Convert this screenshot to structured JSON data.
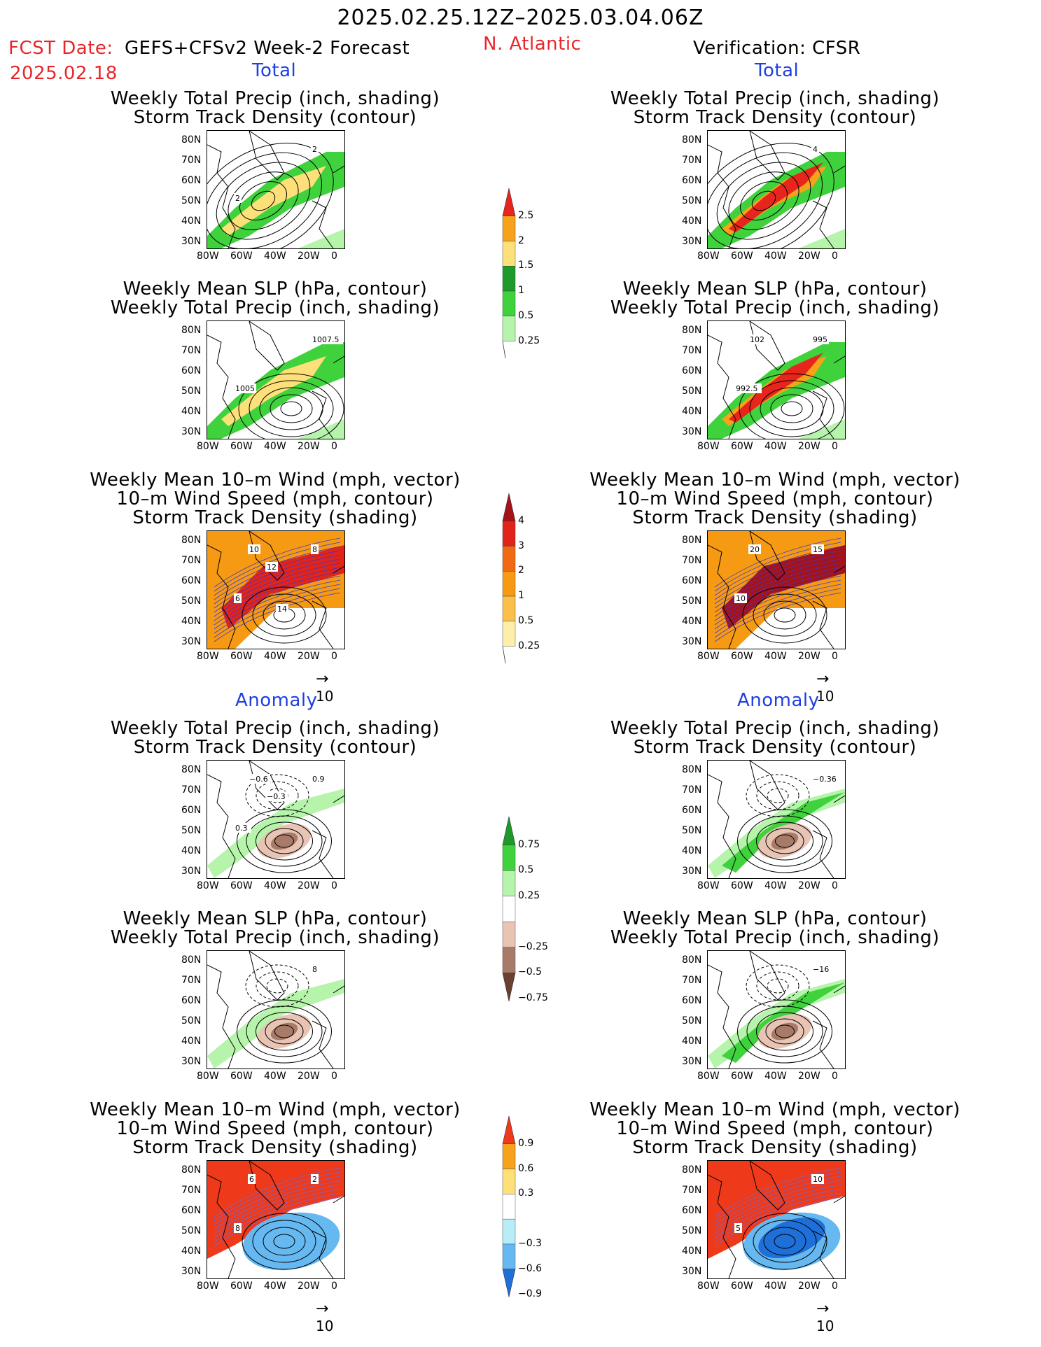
{
  "header": {
    "period": "2025.02.25.12Z–2025.03.04.06Z",
    "region": "N. Atlantic",
    "fcst_label": "FCST Date:",
    "fcst_model": "GEFS+CFSv2 Week-2 Forecast",
    "fcst_date": "2025.02.18",
    "verification": "Verification: CFSR"
  },
  "sections": {
    "total": "Total",
    "anomaly": "Anomaly"
  },
  "panel_titles": {
    "precip_track": [
      "Weekly Total Precip (inch, shading)",
      "Storm Track Density (contour)"
    ],
    "slp_precip": [
      "Weekly Mean SLP (hPa, contour)",
      "Weekly Total Precip (inch, shading)"
    ],
    "wind": [
      "Weekly Mean 10–m Wind (mph, vector)",
      "10–m Wind Speed (mph, contour)",
      "Storm Track Density (shading)"
    ]
  },
  "axes": {
    "lat": [
      "80N",
      "70N",
      "60N",
      "50N",
      "40N",
      "30N"
    ],
    "lon": [
      "80W",
      "60W",
      "40W",
      "20W",
      "0"
    ]
  },
  "vector_scale": "10",
  "contour_labels": {
    "l_total_precip": [
      "2",
      "2"
    ],
    "l_total_slp": [
      "1007.5",
      "1005"
    ],
    "l_total_wind": [
      "8",
      "6",
      "10",
      "12",
      "14"
    ],
    "r_total_precip": [
      "4"
    ],
    "r_total_slp": [
      "995",
      "992.5",
      "102"
    ],
    "r_total_wind": [
      "15",
      "10",
      "20"
    ],
    "l_anom_precip": [
      "0.9",
      "0.3",
      "−0.6",
      "−0.3"
    ],
    "l_anom_slp": [
      "8"
    ],
    "l_anom_wind": [
      "2",
      "8",
      "6"
    ],
    "r_anom_precip": [
      "−0.36"
    ],
    "r_anom_slp": [
      "−16"
    ],
    "r_anom_wind": [
      "10",
      "5"
    ]
  },
  "colorbars": {
    "precip_total": {
      "labels": [
        "2.5",
        "2",
        "1.5",
        "1",
        "0.5",
        "0.25"
      ],
      "colors": [
        "#e8251c",
        "#f7a21a",
        "#fde07a",
        "#1e9a2b",
        "#3fd23d",
        "#b6f4ab"
      ]
    },
    "track_total": {
      "labels": [
        "4",
        "3",
        "2",
        "1",
        "0.5",
        "0.25"
      ],
      "colors": [
        "#a5121a",
        "#e2231a",
        "#f06a13",
        "#f79a13",
        "#fbc04a",
        "#fdeeaa"
      ]
    },
    "precip_anom": {
      "labels": [
        "0.75",
        "0.5",
        "0.25",
        "−0.25",
        "−0.5",
        "−0.75"
      ],
      "colors": [
        "#1e9a2b",
        "#3fd23d",
        "#b6f4ab",
        "#ffffff",
        "#e8c4b4",
        "#a87a68",
        "#6b4030"
      ]
    },
    "track_anom": {
      "labels": [
        "0.9",
        "0.6",
        "0.3",
        "−0.3",
        "−0.6",
        "−0.9"
      ],
      "colors": [
        "#ee3a1a",
        "#f7a21a",
        "#fde07a",
        "#ffffff",
        "#b8ecf7",
        "#66b8f0",
        "#1e6fd8"
      ]
    }
  }
}
